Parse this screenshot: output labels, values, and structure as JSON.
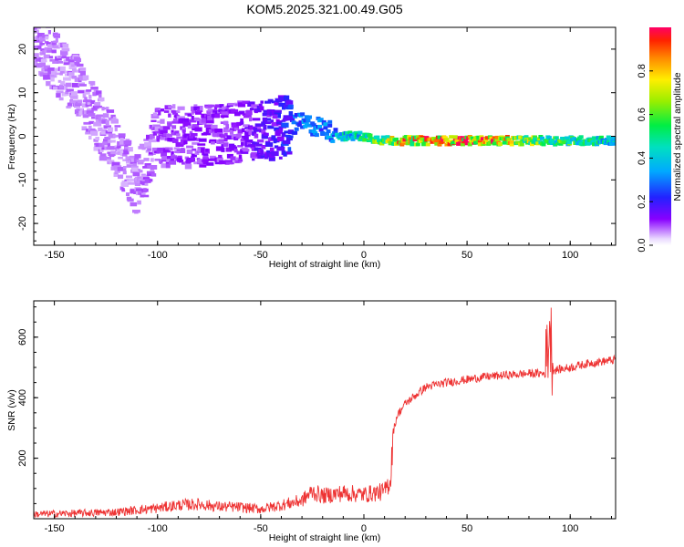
{
  "chart_data": [
    {
      "type": "heatmap",
      "title": "KOM5.2025.321.00.49.G05",
      "xlabel": "Height of straight line (km)",
      "ylabel": "Frequency (Hz)",
      "xlim": [
        -160,
        122
      ],
      "ylim": [
        -25,
        25
      ],
      "xticks": [
        -150,
        -100,
        -50,
        0,
        50,
        100
      ],
      "yticks": [
        -20,
        -10,
        0,
        10,
        20
      ],
      "colorbar": {
        "label": "Normalized spectral amplitude",
        "range": [
          0,
          1
        ],
        "ticks": [
          "0.0",
          "0.2",
          "0.4",
          "0.6",
          "0.8"
        ]
      },
      "ridge": {
        "description_points_height_km": [
          -160,
          -140,
          -120,
          -110,
          -100,
          -80,
          -60,
          -40,
          -30,
          -20,
          -10,
          0,
          10,
          20,
          40,
          60,
          80,
          90,
          100,
          122
        ],
        "frequency_hz": [
          22,
          12,
          -3,
          -12,
          0,
          0,
          1,
          2,
          3,
          2,
          0,
          0,
          -1,
          -1,
          -1,
          -1,
          -1,
          -1,
          -1,
          -1
        ],
        "amplitude": [
          0.08,
          0.08,
          0.08,
          0.08,
          0.1,
          0.12,
          0.12,
          0.2,
          0.35,
          0.3,
          0.45,
          0.55,
          0.7,
          0.85,
          0.95,
          0.95,
          0.7,
          0.6,
          0.6,
          0.45
        ]
      }
    },
    {
      "type": "line",
      "title": "",
      "xlabel": "Height of straight line (km)",
      "ylabel": "SNR (v/v)",
      "xlim": [
        -160,
        122
      ],
      "ylim": [
        0,
        720
      ],
      "xticks": [
        -150,
        -100,
        -50,
        0,
        50,
        100
      ],
      "yticks": [
        200,
        400,
        600
      ],
      "series": [
        {
          "name": "SNR",
          "color": "#ee3333",
          "x": [
            -160,
            -140,
            -120,
            -100,
            -90,
            -80,
            -70,
            -60,
            -50,
            -40,
            -30,
            -25,
            -20,
            -10,
            0,
            10,
            13,
            14,
            16,
            20,
            30,
            40,
            50,
            60,
            70,
            80,
            88,
            90,
            92,
            100,
            110,
            122
          ],
          "y": [
            15,
            18,
            22,
            35,
            45,
            48,
            40,
            38,
            32,
            45,
            60,
            90,
            75,
            85,
            80,
            90,
            130,
            280,
            340,
            380,
            435,
            450,
            460,
            470,
            475,
            480,
            480,
            640,
            490,
            500,
            515,
            525
          ]
        }
      ]
    }
  ]
}
